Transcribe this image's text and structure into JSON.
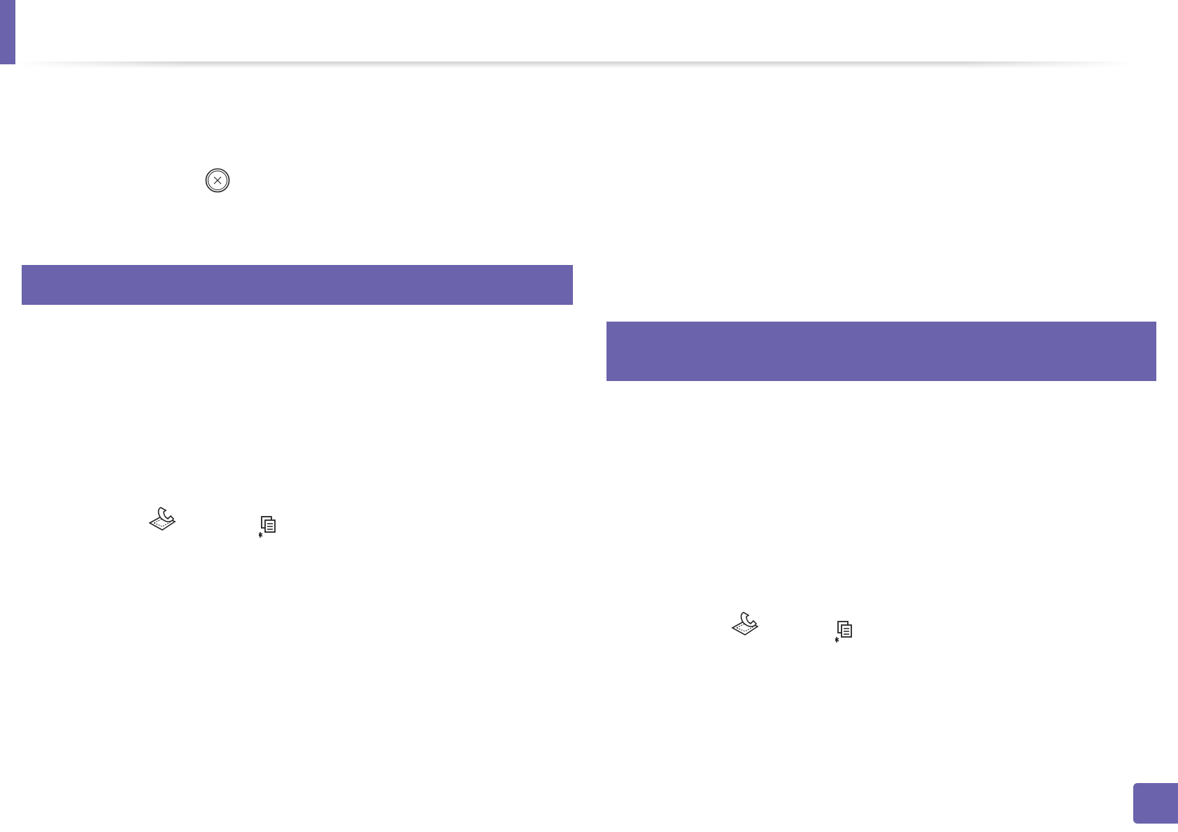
{
  "colors": {
    "accent": "#6b63ab",
    "icon": "#222222"
  },
  "icons": {
    "stop_button": "stop-clear-icon",
    "fax_left": "fax-icon",
    "menu_left": "menu-icon",
    "fax_right": "fax-icon",
    "menu_right": "menu-icon"
  }
}
